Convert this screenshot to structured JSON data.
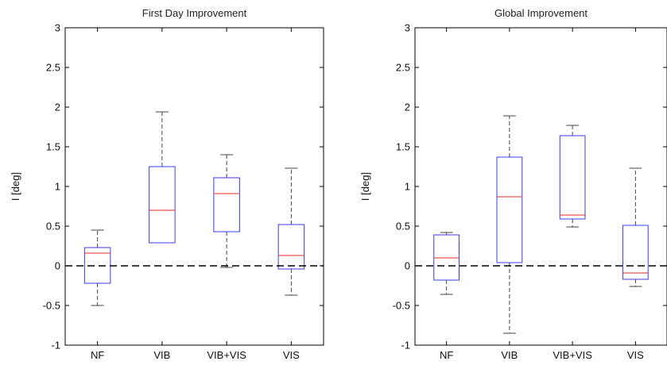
{
  "chart_data": [
    {
      "type": "box",
      "title": "First Day Improvement",
      "ylabel": "I [deg]",
      "xlabel": "",
      "categories": [
        "NF",
        "VIB",
        "VIB+VIS",
        "VIS"
      ],
      "ylim": [
        -1,
        3
      ],
      "yticks": [
        -1,
        -0.5,
        0,
        0.5,
        1,
        1.5,
        2,
        2.5,
        3
      ],
      "ytick_labels": [
        "-1",
        "-0.5",
        "0",
        "0.5",
        "1",
        "1.5",
        "2",
        "2.5",
        "3"
      ],
      "reference_line": 0,
      "boxes": [
        {
          "whisker_low": -0.5,
          "q1": -0.22,
          "median": 0.16,
          "q3": 0.23,
          "whisker_high": 0.45
        },
        {
          "whisker_low": 0.29,
          "q1": 0.29,
          "median": 0.7,
          "q3": 1.25,
          "whisker_high": 1.94
        },
        {
          "whisker_low": -0.02,
          "q1": 0.43,
          "median": 0.91,
          "q3": 1.11,
          "whisker_high": 1.4
        },
        {
          "whisker_low": -0.37,
          "q1": -0.04,
          "median": 0.13,
          "q3": 0.52,
          "whisker_high": 1.23
        }
      ],
      "colors": {
        "box": "#3b3bf0",
        "median": "#ee2a2a",
        "whisker": "#444444",
        "reference": "#000000"
      },
      "grid": false
    },
    {
      "type": "box",
      "title": "Global Improvement",
      "ylabel": "I [deg]",
      "xlabel": "",
      "categories": [
        "NF",
        "VIB",
        "VIB+VIS",
        "VIS"
      ],
      "ylim": [
        -1,
        3
      ],
      "yticks": [
        -1,
        -0.5,
        0,
        0.5,
        1,
        1.5,
        2,
        2.5,
        3
      ],
      "ytick_labels": [
        "-1",
        "-0.5",
        "0",
        "0.5",
        "1",
        "1.5",
        "2",
        "2.5",
        "3"
      ],
      "reference_line": 0,
      "boxes": [
        {
          "whisker_low": -0.36,
          "q1": -0.18,
          "median": 0.1,
          "q3": 0.39,
          "whisker_high": 0.42
        },
        {
          "whisker_low": -0.85,
          "q1": 0.04,
          "median": 0.87,
          "q3": 1.37,
          "whisker_high": 1.89
        },
        {
          "whisker_low": 0.49,
          "q1": 0.59,
          "median": 0.64,
          "q3": 1.64,
          "whisker_high": 1.77
        },
        {
          "whisker_low": -0.26,
          "q1": -0.17,
          "median": -0.09,
          "q3": 0.51,
          "whisker_high": 1.23
        }
      ],
      "colors": {
        "box": "#3b3bf0",
        "median": "#ee2a2a",
        "whisker": "#444444",
        "reference": "#000000"
      },
      "grid": false
    }
  ]
}
